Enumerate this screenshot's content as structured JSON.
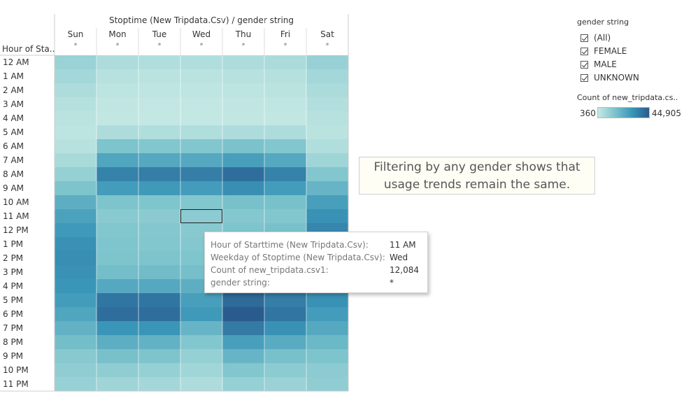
{
  "chart_data": {
    "type": "heatmap",
    "title": "Stoptime (New Tripdata.Csv)  /  gender string",
    "row_header": "Hour of Sta..",
    "columns": [
      {
        "label": "Sun",
        "sub": "*"
      },
      {
        "label": "Mon",
        "sub": "*"
      },
      {
        "label": "Tue",
        "sub": "*"
      },
      {
        "label": "Wed",
        "sub": "*"
      },
      {
        "label": "Thu",
        "sub": "*"
      },
      {
        "label": "Fri",
        "sub": "*"
      },
      {
        "label": "Sat",
        "sub": "*"
      }
    ],
    "rows": [
      "12 AM",
      "1 AM",
      "2 AM",
      "3 AM",
      "4 AM",
      "5 AM",
      "6 AM",
      "7 AM",
      "8 AM",
      "9 AM",
      "10 AM",
      "11 AM",
      "12 PM",
      "1 PM",
      "2 PM",
      "3 PM",
      "4 PM",
      "5 PM",
      "6 PM",
      "7 PM",
      "8 PM",
      "9 PM",
      "10 PM",
      "11 PM"
    ],
    "values": [
      [
        9000,
        5000,
        4500,
        4500,
        5000,
        5500,
        9500
      ],
      [
        7000,
        3000,
        2500,
        2500,
        3000,
        3500,
        7000
      ],
      [
        5000,
        2000,
        1500,
        1500,
        2000,
        2500,
        5500
      ],
      [
        3500,
        1000,
        800,
        800,
        1000,
        1200,
        4000
      ],
      [
        2500,
        700,
        500,
        500,
        700,
        800,
        3000
      ],
      [
        2000,
        5000,
        4500,
        4500,
        5000,
        5000,
        2500
      ],
      [
        3000,
        15000,
        14000,
        14000,
        15500,
        14000,
        4500
      ],
      [
        6000,
        25000,
        24000,
        24000,
        27000,
        24000,
        8000
      ],
      [
        10000,
        35000,
        36000,
        36000,
        40000,
        35000,
        14000
      ],
      [
        15000,
        28000,
        29000,
        28000,
        32000,
        28000,
        20000
      ],
      [
        22000,
        15000,
        14500,
        14000,
        16000,
        16000,
        27000
      ],
      [
        26000,
        12500,
        12200,
        12084,
        13500,
        14000,
        31000
      ],
      [
        29000,
        14000,
        13500,
        13000,
        15000,
        16000,
        34000
      ],
      [
        31000,
        14500,
        14000,
        13500,
        16000,
        16500,
        35000
      ],
      [
        32000,
        15000,
        15000,
        14500,
        17000,
        18000,
        35000
      ],
      [
        31000,
        17000,
        17500,
        16500,
        19000,
        20000,
        34000
      ],
      [
        30000,
        24000,
        24000,
        22000,
        27000,
        26000,
        33000
      ],
      [
        28000,
        38000,
        38000,
        27000,
        41000,
        36000,
        31000
      ],
      [
        25000,
        40000,
        40000,
        29000,
        44905,
        38000,
        28000
      ],
      [
        21000,
        30000,
        30000,
        20000,
        37000,
        31000,
        24000
      ],
      [
        17000,
        22000,
        21000,
        14000,
        27000,
        23000,
        19000
      ],
      [
        13000,
        16000,
        15000,
        10000,
        20000,
        16000,
        15000
      ],
      [
        11000,
        11000,
        10000,
        7500,
        14000,
        12000,
        12000
      ],
      [
        9500,
        8000,
        7000,
        5000,
        10000,
        9000,
        11000
      ]
    ],
    "value_range": [
      360,
      44905
    ],
    "color_stops": [
      "#c4e8e3",
      "#7cc3cc",
      "#3a96b8",
      "#2a5b8e"
    ],
    "selected_cell": {
      "row": 11,
      "col": 3
    },
    "legend_placement": "top-right"
  },
  "filter_legend": {
    "title": "gender string",
    "items": [
      {
        "label": "(All)",
        "checked": true
      },
      {
        "label": "FEMALE",
        "checked": true
      },
      {
        "label": "MALE",
        "checked": true
      },
      {
        "label": "UNKNOWN",
        "checked": true
      }
    ]
  },
  "color_legend": {
    "title": "Count of new_tripdata.cs..",
    "min_label": "360",
    "max_label": "44,905"
  },
  "annotation": {
    "line1": "Filtering by any gender shows that",
    "line2": "usage trends remain the same."
  },
  "tooltip": {
    "rows": [
      {
        "key": "Hour of Starttime (New Tripdata.Csv):",
        "value": "11 AM"
      },
      {
        "key": "Weekday of Stoptime (New Tripdata.Csv):",
        "value": "Wed"
      },
      {
        "key": "Count of new_tripdata.csv1:",
        "value": "12,084"
      },
      {
        "key": "gender string:",
        "value": "*"
      }
    ]
  }
}
